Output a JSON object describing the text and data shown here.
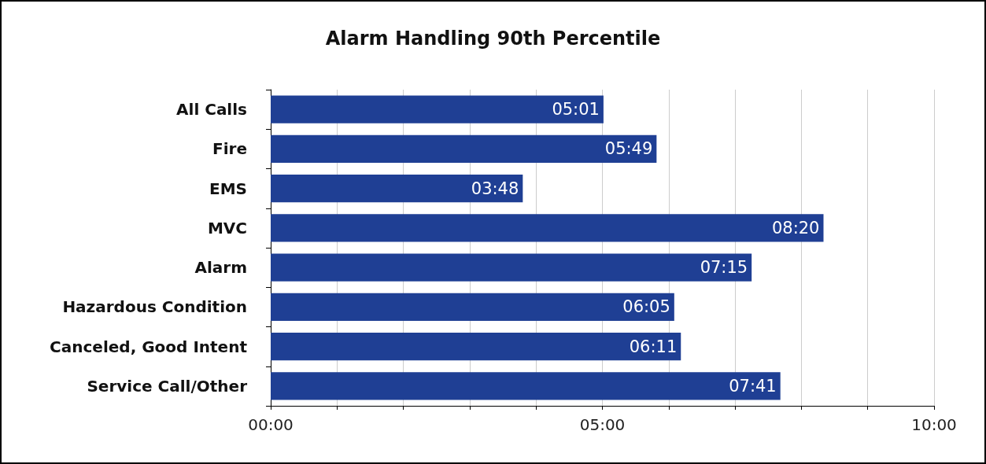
{
  "chart_data": {
    "type": "bar",
    "orientation": "horizontal",
    "title": "Alarm Handling 90th Percentile",
    "categories": [
      "All Calls",
      "Fire",
      "EMS",
      "MVC",
      "Alarm",
      "Hazardous Condition",
      "Canceled, Good Intent",
      "Service Call/Other"
    ],
    "values": [
      5.0167,
      5.8167,
      3.8,
      8.3333,
      7.25,
      6.0833,
      6.1833,
      7.6833
    ],
    "value_labels": [
      "05:01",
      "05:49",
      "03:48",
      "08:20",
      "07:15",
      "06:05",
      "06:11",
      "07:41"
    ],
    "color": "#1f3f94",
    "xlim": [
      0,
      10
    ],
    "xticks": [
      {
        "value": 0,
        "label": "00:00"
      },
      {
        "value": 1,
        "label": null
      },
      {
        "value": 2,
        "label": null
      },
      {
        "value": 3,
        "label": null
      },
      {
        "value": 4,
        "label": null
      },
      {
        "value": 5,
        "label": "05:00"
      },
      {
        "value": 6,
        "label": null
      },
      {
        "value": 7,
        "label": null
      },
      {
        "value": 8,
        "label": null
      },
      {
        "value": 9,
        "label": null
      },
      {
        "value": 10,
        "label": "10:00"
      }
    ],
    "grid": "x"
  }
}
